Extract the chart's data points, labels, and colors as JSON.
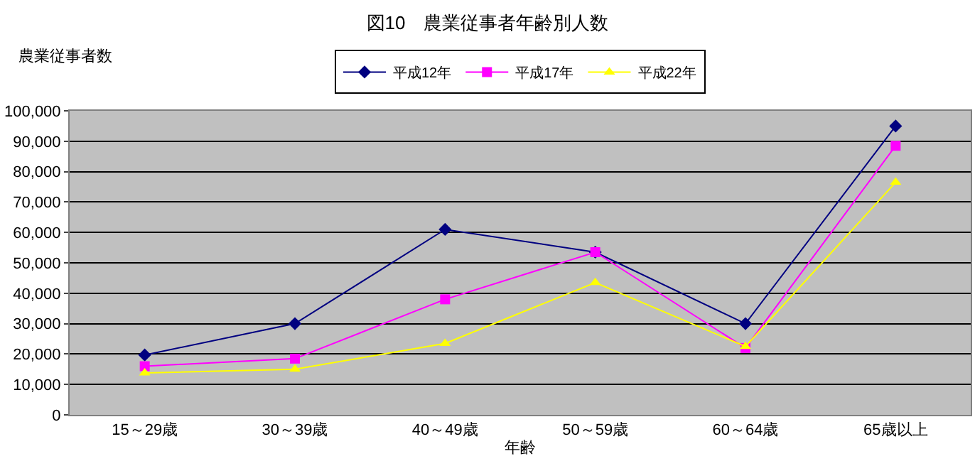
{
  "chart_data": {
    "type": "line",
    "title": "図10　農業従事者年齢別人数",
    "xlabel": "年齢",
    "ylabel": "農業従事者数",
    "categories": [
      "15～29歳",
      "30～39歳",
      "40～49歳",
      "50～59歳",
      "60～64歳",
      "65歳以上"
    ],
    "series": [
      {
        "name": "平成12年",
        "color": "#000080",
        "marker": "diamond",
        "values": [
          19700,
          30000,
          61000,
          53500,
          30000,
          95000
        ]
      },
      {
        "name": "平成17年",
        "color": "#ff00ff",
        "marker": "square",
        "values": [
          16000,
          18500,
          38000,
          53500,
          22000,
          88500
        ]
      },
      {
        "name": "平成22年",
        "color": "#ffff00",
        "marker": "triangle",
        "values": [
          13800,
          15000,
          23500,
          43500,
          22500,
          76500
        ]
      }
    ],
    "ylim": [
      0,
      100000
    ],
    "yticks": [
      {
        "value": 0,
        "label": "0"
      },
      {
        "value": 10000,
        "label": "10,000"
      },
      {
        "value": 20000,
        "label": "20,000"
      },
      {
        "value": 30000,
        "label": "30,000"
      },
      {
        "value": 40000,
        "label": "40,000"
      },
      {
        "value": 50000,
        "label": "50,000"
      },
      {
        "value": 60000,
        "label": "60,000"
      },
      {
        "value": 70000,
        "label": "70,000"
      },
      {
        "value": 80000,
        "label": "80,000"
      },
      {
        "value": 90000,
        "label": "90,000"
      },
      {
        "value": 100000,
        "label": "100,000"
      }
    ],
    "grid": "y",
    "legend": "top",
    "line_style": "solid"
  }
}
